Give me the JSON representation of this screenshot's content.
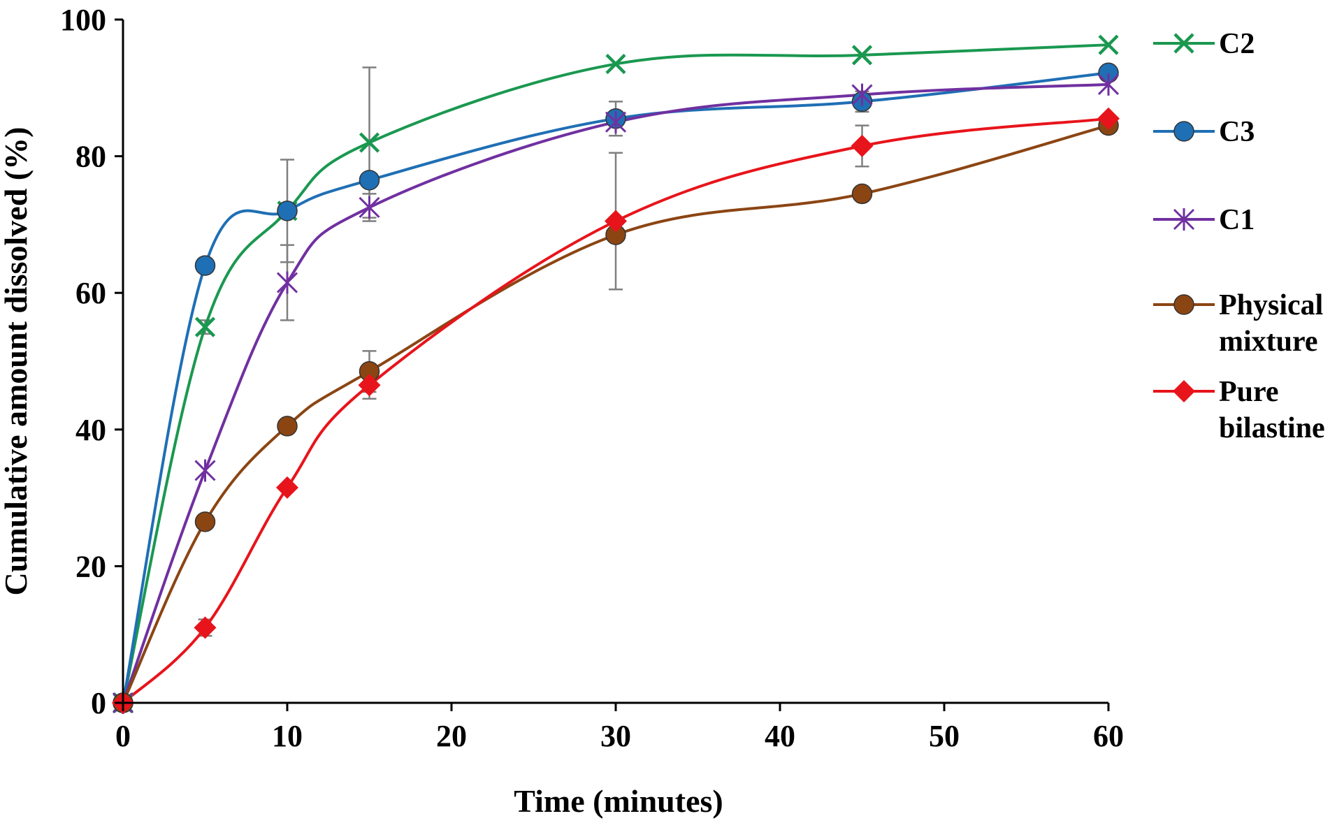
{
  "chart_data": {
    "type": "line",
    "title": "",
    "xlabel": "Time (minutes)",
    "ylabel": "Cumulative amount dissolved (%)",
    "xlim": [
      0,
      60
    ],
    "ylim": [
      0,
      100
    ],
    "xticks": [
      "0",
      "10",
      "20",
      "30",
      "40",
      "50",
      "60"
    ],
    "yticks": [
      "0",
      "20",
      "40",
      "60",
      "80",
      "100"
    ],
    "grid": false,
    "legend_position": "right",
    "x": [
      0,
      5,
      10,
      15,
      30,
      45,
      60
    ],
    "series": [
      {
        "name": "C2",
        "color": "#1a9850",
        "marker": "x",
        "values": [
          0,
          55,
          72,
          82,
          93.5,
          94.8,
          96.3
        ],
        "errors": [
          0,
          1,
          0,
          11,
          0,
          0,
          0
        ]
      },
      {
        "name": "C3",
        "color": "#1f6fb4",
        "marker": "circle",
        "values": [
          0,
          64,
          72,
          76.5,
          85.5,
          88,
          92.2
        ],
        "errors": [
          0,
          0,
          7.5,
          0,
          2.5,
          1.5,
          0
        ]
      },
      {
        "name": "C1",
        "color": "#7030a0",
        "marker": "star",
        "values": [
          0,
          34,
          61.5,
          72.5,
          85,
          89,
          90.5
        ],
        "errors": [
          0,
          0,
          5.5,
          2,
          0,
          0,
          0
        ]
      },
      {
        "name": "Physical mixture",
        "label_lines": [
          "Physical",
          "mixture"
        ],
        "color": "#8b4513",
        "marker": "circle",
        "values": [
          0,
          26.5,
          40.5,
          48.5,
          68.5,
          74.5,
          84.5
        ],
        "errors": [
          0,
          0,
          0,
          3,
          0,
          0,
          0
        ]
      },
      {
        "name": "Pure bilastine",
        "label_lines": [
          "Pure",
          "bilastine"
        ],
        "color": "#e8141b",
        "marker": "diamond",
        "values": [
          0,
          11,
          31.5,
          46.5,
          70.5,
          81.5,
          85.5
        ],
        "errors": [
          0,
          1.2,
          0,
          2,
          10,
          3,
          0
        ]
      }
    ]
  }
}
